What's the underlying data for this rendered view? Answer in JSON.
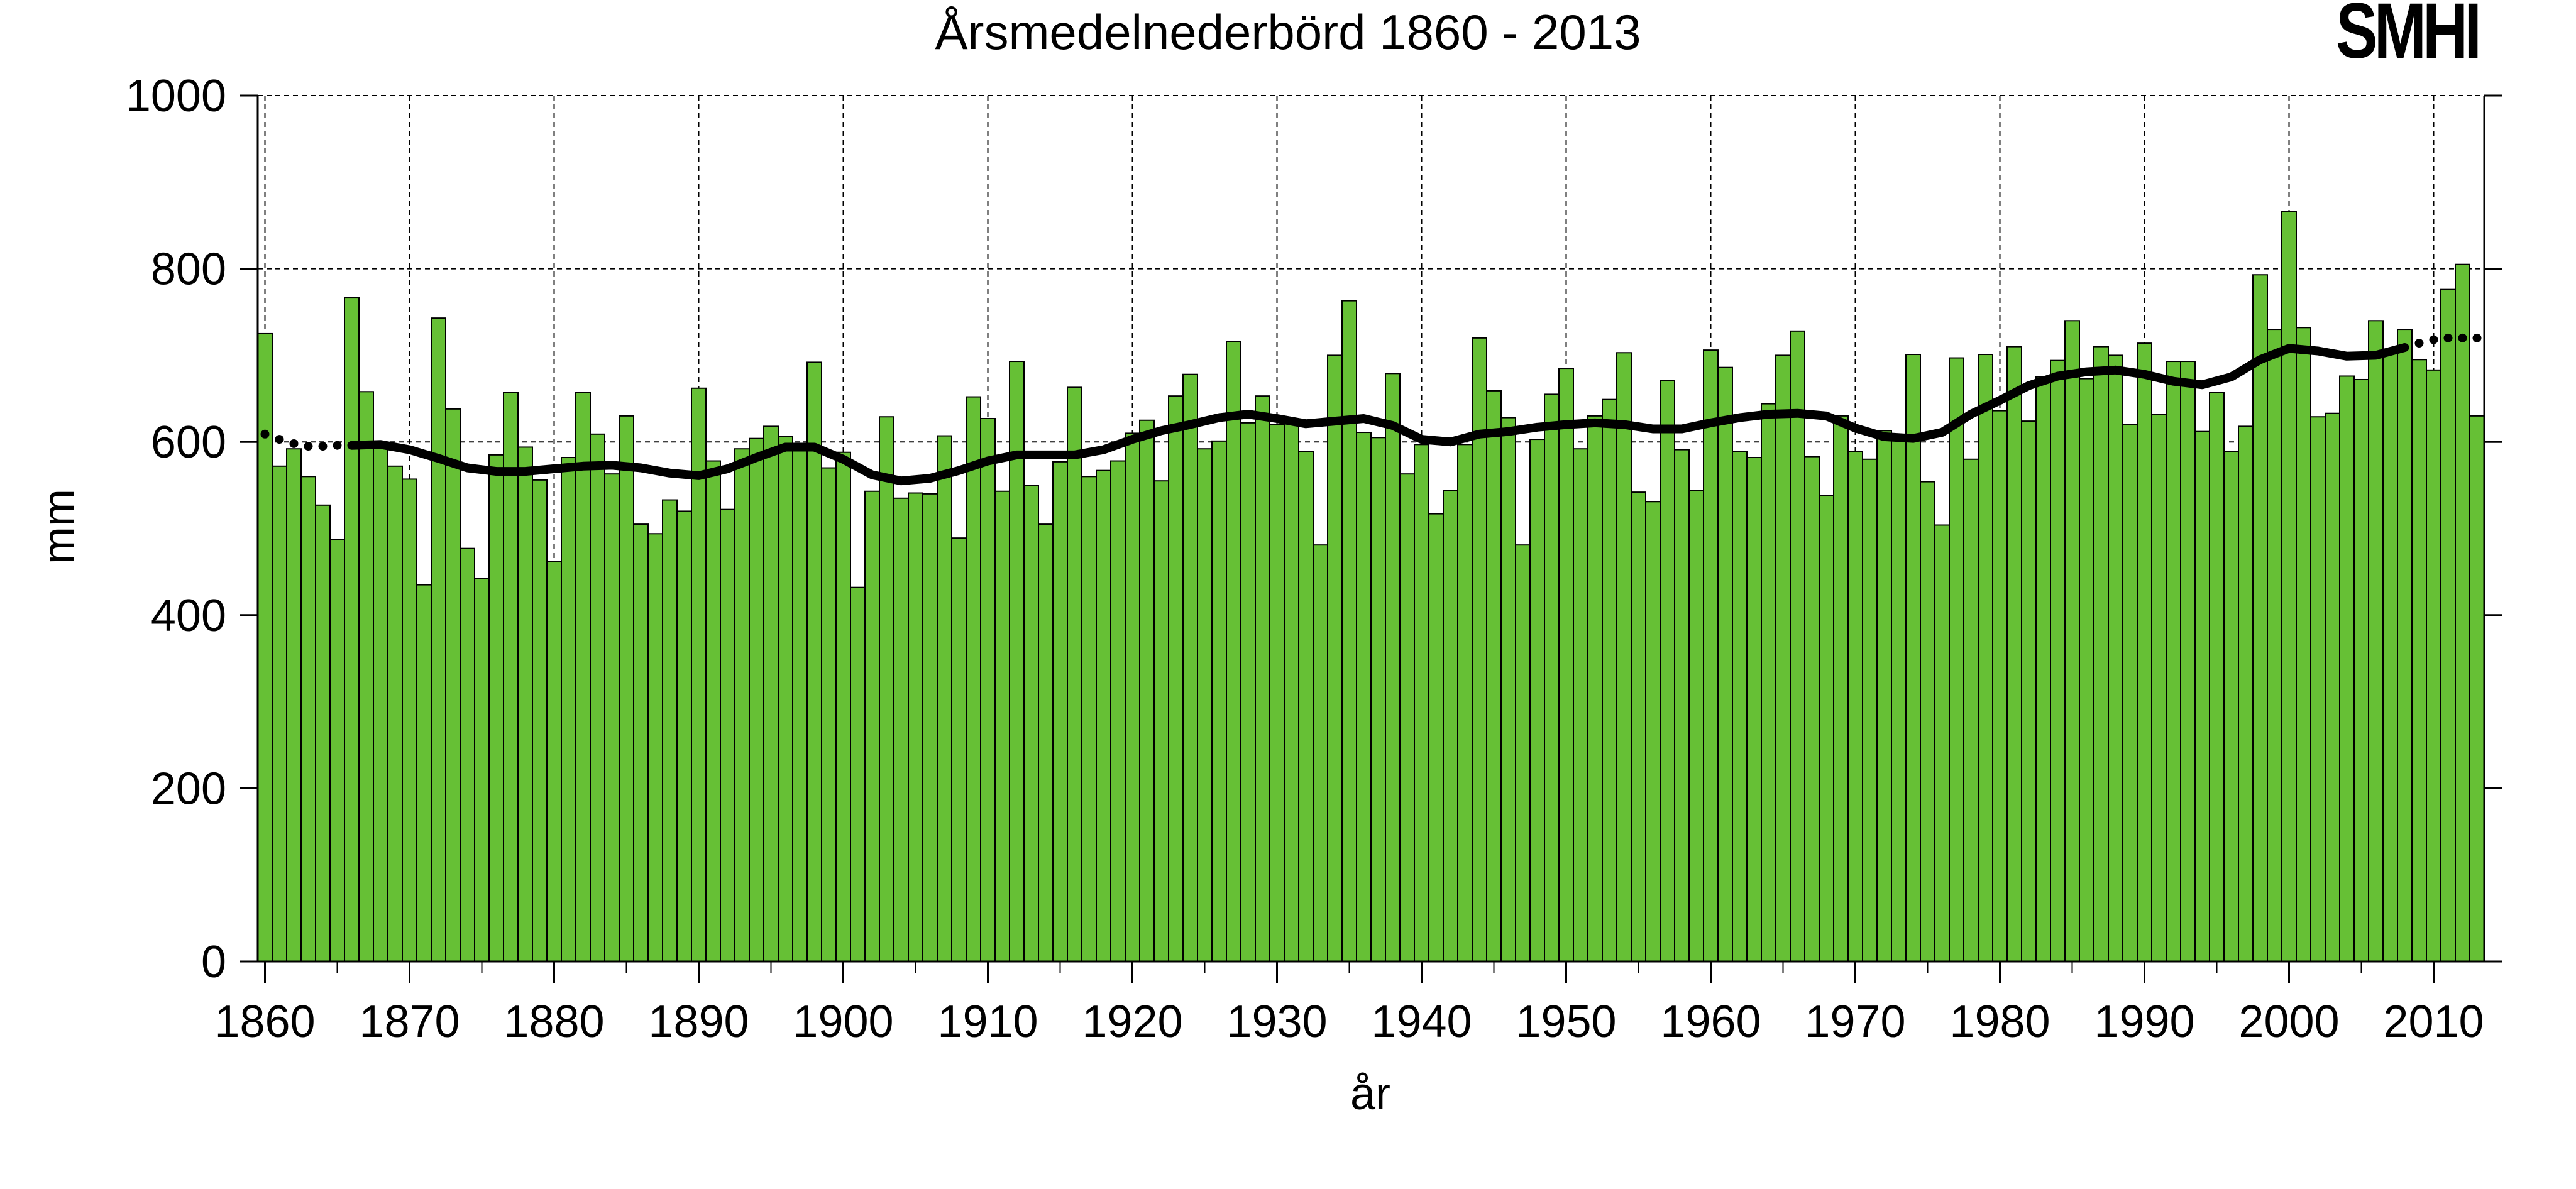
{
  "logo_text": "SMHI",
  "colors": {
    "bar_fill": "#66c035",
    "bar_stroke": "#000000",
    "trend": "#000000",
    "grid": "#000000",
    "background": "#ffffff"
  },
  "chart_data": {
    "type": "bar",
    "title": "Årsmedelnederbörd 1860 - 2013",
    "xlabel": "år",
    "ylabel": "mm",
    "ylim": [
      0,
      1000
    ],
    "xlim": [
      1859.5,
      2013.5
    ],
    "yticks": [
      0,
      200,
      400,
      600,
      800,
      1000
    ],
    "xticks": [
      1860,
      1870,
      1880,
      1890,
      1900,
      1910,
      1920,
      1930,
      1940,
      1950,
      1960,
      1970,
      1980,
      1990,
      2000,
      2010
    ],
    "grid": true,
    "legend": "none",
    "series": [
      {
        "type": "bar",
        "x_start": 1860,
        "values": [
          725,
          572,
          592,
          560,
          527,
          487,
          767,
          658,
          596,
          572,
          557,
          435,
          743,
          638,
          477,
          442,
          585,
          657,
          594,
          556,
          462,
          582,
          657,
          609,
          563,
          630,
          505,
          494,
          533,
          520,
          662,
          578,
          522,
          592,
          604,
          618,
          606,
          596,
          692,
          570,
          588,
          432,
          543,
          629,
          535,
          541,
          540,
          607,
          489,
          652,
          627,
          543,
          693,
          550,
          505,
          577,
          663,
          560,
          567,
          578,
          610,
          625,
          555,
          653,
          678,
          592,
          601,
          716,
          622,
          653,
          620,
          625,
          589,
          481,
          700,
          763,
          611,
          605,
          679,
          563,
          597,
          517,
          544,
          597,
          720,
          659,
          628,
          481,
          603,
          655,
          685,
          592,
          630,
          649,
          703,
          542,
          531,
          671,
          591,
          544,
          706,
          686,
          589,
          582,
          644,
          700,
          728,
          583,
          538,
          630,
          589,
          580,
          613,
          608,
          701,
          554,
          504,
          697,
          580,
          701,
          636,
          710,
          624,
          675,
          694,
          740,
          673,
          710,
          700,
          620,
          714,
          632,
          693,
          693,
          612,
          657,
          589,
          618,
          793,
          730,
          866,
          732,
          629,
          633,
          676,
          672,
          740,
          705,
          730,
          695,
          683,
          776,
          805,
          630
        ]
      },
      {
        "type": "line",
        "name_hidden": true,
        "trend_solid": {
          "x": [
            1866,
            1868,
            1870,
            1872,
            1874,
            1876,
            1878,
            1880,
            1882,
            1884,
            1886,
            1888,
            1890,
            1892,
            1894,
            1896,
            1898,
            1900,
            1902,
            1904,
            1906,
            1908,
            1910,
            1912,
            1914,
            1916,
            1918,
            1920,
            1922,
            1924,
            1926,
            1928,
            1930,
            1932,
            1934,
            1936,
            1938,
            1940,
            1942,
            1944,
            1946,
            1948,
            1950,
            1952,
            1954,
            1956,
            1958,
            1960,
            1962,
            1964,
            1966,
            1968,
            1970,
            1972,
            1974,
            1976,
            1978,
            1980,
            1982,
            1984,
            1986,
            1988,
            1990,
            1992,
            1994,
            1996,
            1998,
            2000,
            2002,
            2004,
            2006,
            2008
          ],
          "y": [
            596,
            597,
            591,
            581,
            570,
            566,
            566,
            569,
            572,
            573,
            570,
            564,
            561,
            569,
            582,
            594,
            594,
            580,
            562,
            555,
            558,
            567,
            578,
            585,
            585,
            585,
            591,
            603,
            613,
            620,
            628,
            632,
            627,
            621,
            624,
            627,
            619,
            603,
            600,
            609,
            612,
            617,
            620,
            622,
            620,
            615,
            615,
            622,
            628,
            632,
            633,
            630,
            616,
            606,
            604,
            611,
            632,
            648,
            665,
            676,
            681,
            683,
            678,
            670,
            666,
            675,
            695,
            708,
            705,
            699,
            700,
            709
          ]
        },
        "trend_dotted": {
          "x": [
            1860,
            1861,
            1862,
            1863,
            1864,
            1865,
            2009,
            2010,
            2011,
            2012,
            2013
          ],
          "y": [
            609,
            603,
            598,
            595,
            595,
            596,
            714,
            718,
            720,
            720,
            720
          ]
        }
      }
    ]
  }
}
